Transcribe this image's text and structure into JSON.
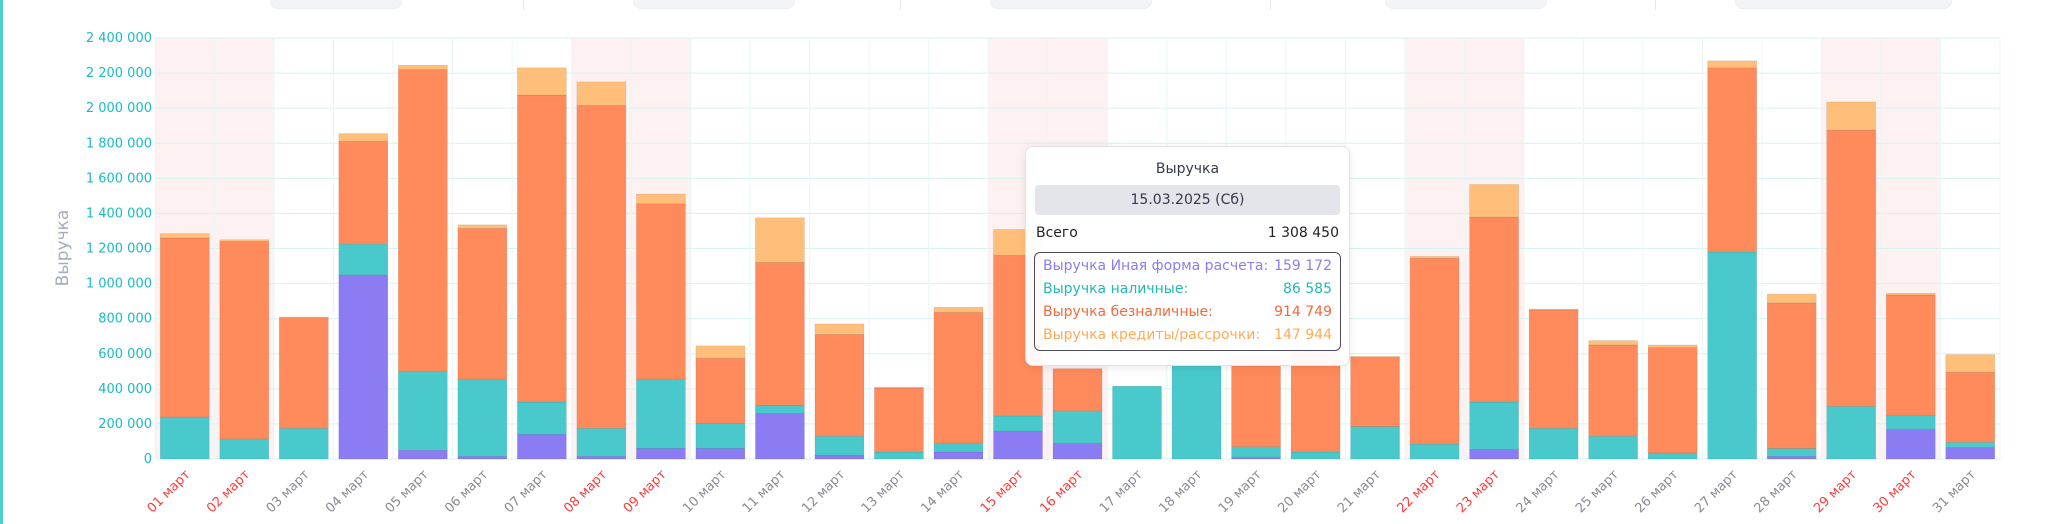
{
  "chart_data": {
    "type": "bar",
    "stacked": true,
    "ylabel": "Выручка",
    "ylim": [
      0,
      2400000
    ],
    "yticks": [
      "2 400 000",
      "2 200 000",
      "2 000 000",
      "1 800 000",
      "1 600 000",
      "1 400 000",
      "1 200 000",
      "1 000 000",
      "800 000",
      "600 000",
      "400 000",
      "200 000",
      "0"
    ],
    "yticks_values": [
      2400000,
      2200000,
      2000000,
      1800000,
      1600000,
      1400000,
      1200000,
      1000000,
      800000,
      600000,
      400000,
      200000,
      0
    ],
    "grid": true,
    "categories": [
      "01 март",
      "02 март",
      "03 март",
      "04 март",
      "05 март",
      "06 март",
      "07 март",
      "08 март",
      "09 март",
      "10 март",
      "11 март",
      "12 март",
      "13 март",
      "14 март",
      "15 март",
      "16 март",
      "17 март",
      "18 март",
      "19 март",
      "20 март",
      "21 март",
      "22 март",
      "23 март",
      "24 март",
      "25 март",
      "26 март",
      "27 март",
      "28 март",
      "29 март",
      "30 март",
      "31 март"
    ],
    "weekend": [
      true,
      true,
      false,
      false,
      false,
      false,
      false,
      true,
      true,
      false,
      false,
      false,
      false,
      false,
      true,
      true,
      false,
      false,
      false,
      false,
      false,
      true,
      true,
      false,
      false,
      false,
      false,
      false,
      true,
      true,
      false
    ],
    "series": [
      {
        "name": "Выручка Иная форма расчета",
        "color": "#8b7cf3",
        "values": [
          0,
          0,
          0,
          1050000,
          50000,
          15000,
          140000,
          15000,
          60000,
          60000,
          260000,
          20000,
          0,
          40000,
          159172,
          90000,
          0,
          0,
          10000,
          0,
          0,
          0,
          55000,
          0,
          0,
          0,
          0,
          15000,
          0,
          170000,
          65000
        ]
      },
      {
        "name": "Выручка наличные",
        "color": "#49c9cb",
        "values": [
          240000,
          115000,
          175000,
          175000,
          450000,
          440000,
          185000,
          160000,
          395000,
          145000,
          45000,
          110000,
          40000,
          50000,
          86585,
          185000,
          415000,
          560000,
          60000,
          40000,
          185000,
          85000,
          270000,
          175000,
          130000,
          35000,
          1180000,
          45000,
          300000,
          80000,
          30000
        ]
      },
      {
        "name": "Выручка безналичные",
        "color": "#ff8a5c",
        "values": [
          1020000,
          1125000,
          630000,
          585000,
          1720000,
          860000,
          1750000,
          1840000,
          1000000,
          370000,
          815000,
          580000,
          365000,
          745000,
          914749,
          240000,
          0,
          0,
          520000,
          580000,
          395000,
          1060000,
          1055000,
          675000,
          520000,
          600000,
          1050000,
          830000,
          1575000,
          685000,
          400000
        ]
      },
      {
        "name": "Выручка кредиты/рассрочки",
        "color": "#ffbf7a",
        "values": [
          25000,
          10000,
          5000,
          45000,
          25000,
          20000,
          155000,
          135000,
          55000,
          70000,
          255000,
          60000,
          5000,
          30000,
          147944,
          0,
          0,
          0,
          0,
          0,
          5000,
          10000,
          185000,
          5000,
          25000,
          15000,
          40000,
          50000,
          160000,
          10000,
          100000
        ]
      }
    ]
  },
  "tooltip": {
    "title": "Выручка",
    "date": "15.03.2025 (Сб)",
    "total_label": "Всего",
    "total_value": "1 308 450",
    "rows": [
      {
        "label": "Выручка Иная форма расчета:",
        "value": "159 172",
        "color": "#8b7cf3"
      },
      {
        "label": "Выручка наличные:",
        "value": "86 585",
        "color": "#22b8b6"
      },
      {
        "label": "Выручка безналичные:",
        "value": "914 749",
        "color": "#f26a3d"
      },
      {
        "label": "Выручка кредиты/рассрочки:",
        "value": "147 944",
        "color": "#ffaa55"
      }
    ]
  }
}
